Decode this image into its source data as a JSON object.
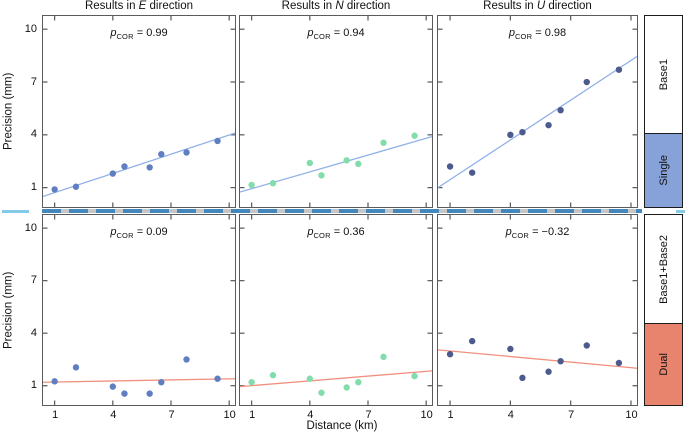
{
  "chart_data": {
    "type": "scatter",
    "xlabel": "Distance (km)",
    "ylabel": "Precision (mm)",
    "xlim": [
      0.4,
      10.3
    ],
    "ylim": [
      -0.1,
      10.75
    ],
    "grid": false,
    "x_tick_values": [
      1,
      4,
      7,
      10
    ],
    "x_tick_labels": [
      "1",
      "4",
      "7",
      "10"
    ],
    "y_tick_values": [
      1,
      4,
      7,
      10
    ],
    "y_tick_labels": [
      "1",
      "4",
      "7",
      "10"
    ],
    "x": [
      1.0,
      2.1,
      4.0,
      4.6,
      5.9,
      6.5,
      7.8,
      9.4
    ],
    "columns": [
      {
        "title_prefix": "Results in ",
        "title_letter": "E",
        "title_suffix": " direction"
      },
      {
        "title_prefix": "Results in ",
        "title_letter": "N",
        "title_suffix": " direction"
      },
      {
        "title_prefix": "Results in ",
        "title_letter": "U",
        "title_suffix": " direction"
      }
    ],
    "rows": [
      {
        "top_label": "Base1",
        "bottom_label": "Single",
        "bottom_fill": "#87a2d8"
      },
      {
        "top_label": "Base1+Base2",
        "bottom_label": "Dual",
        "bottom_fill": "#e8846e"
      }
    ],
    "panels": [
      {
        "name": "E-Single",
        "p_symbol": "p",
        "p_subscript": "COR",
        "p_value": 0.99,
        "p_value_text": " = 0.99",
        "y": [
          0.9,
          1.05,
          1.8,
          2.2,
          2.15,
          2.9,
          3.0,
          3.65
        ],
        "trend": [
          0.4,
          0.5,
          10.3,
          4.1
        ],
        "point_color": "#5f7fc2",
        "line_color": "#8fb0e8"
      },
      {
        "name": "N-Single",
        "p_symbol": "p",
        "p_subscript": "COR",
        "p_value": 0.94,
        "p_value_text": " = 0.94",
        "y": [
          1.15,
          1.25,
          2.4,
          1.7,
          2.55,
          2.35,
          3.55,
          3.95
        ],
        "trend": [
          0.4,
          0.75,
          10.3,
          3.9
        ],
        "point_color": "#83dcab",
        "line_color": "#8fb0e8"
      },
      {
        "name": "U-Single",
        "p_symbol": "p",
        "p_subscript": "COR",
        "p_value": 0.98,
        "p_value_text": " = 0.98",
        "y": [
          2.2,
          1.85,
          4.0,
          4.15,
          4.55,
          5.4,
          7.0,
          7.7
        ],
        "trend": [
          0.4,
          1.0,
          10.3,
          8.45
        ],
        "point_color": "#4c5a8e",
        "line_color": "#8fb0e8"
      },
      {
        "name": "E-Dual",
        "p_symbol": "p",
        "p_subscript": "COR",
        "p_value": 0.09,
        "p_value_text": " = 0.09",
        "y": [
          1.25,
          2.05,
          0.95,
          0.55,
          0.55,
          1.2,
          2.5,
          1.4
        ],
        "trend": [
          0.4,
          1.2,
          10.3,
          1.4
        ],
        "point_color": "#5f7fc2",
        "line_color": "#f1907f"
      },
      {
        "name": "N-Dual",
        "p_symbol": "p",
        "p_subscript": "COR",
        "p_value": 0.36,
        "p_value_text": " = 0.36",
        "y": [
          1.2,
          1.6,
          1.4,
          0.6,
          0.9,
          1.2,
          2.65,
          1.55
        ],
        "trend": [
          0.4,
          0.95,
          10.3,
          1.85
        ],
        "point_color": "#83dcab",
        "line_color": "#f1907f"
      },
      {
        "name": "U-Dual",
        "p_symbol": "p",
        "p_subscript": "COR",
        "p_value": -0.32,
        "p_value_text": " = −0.32",
        "y": [
          2.8,
          3.55,
          3.1,
          1.45,
          1.8,
          2.4,
          3.3,
          2.3
        ],
        "trend": [
          0.4,
          3.05,
          10.3,
          2.0
        ],
        "point_color": "#4c5a8e",
        "line_color": "#f1907f"
      }
    ],
    "colors": {
      "single_fit_line": "#8fb0e8",
      "dual_fit_line": "#f1907f",
      "e_points": "#5f7fc2",
      "n_points": "#83dcab",
      "u_points": "#4c5a8e",
      "single_strip_fill": "#87a2d8",
      "dual_strip_fill": "#e8846e",
      "separator_dash": "#4288bd",
      "separator_end_dash": "#85cbe9",
      "frame": "#5a5b5f"
    }
  }
}
